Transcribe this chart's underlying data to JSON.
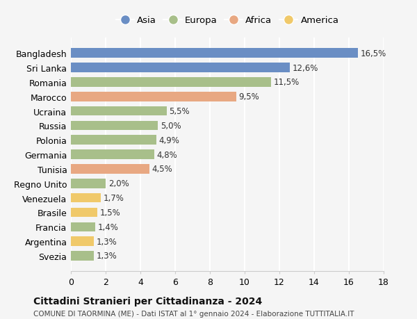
{
  "categories": [
    "Svezia",
    "Argentina",
    "Francia",
    "Brasile",
    "Venezuela",
    "Regno Unito",
    "Tunisia",
    "Germania",
    "Polonia",
    "Russia",
    "Ucraina",
    "Marocco",
    "Romania",
    "Sri Lanka",
    "Bangladesh"
  ],
  "values": [
    1.3,
    1.3,
    1.4,
    1.5,
    1.7,
    2.0,
    4.5,
    4.8,
    4.9,
    5.0,
    5.5,
    9.5,
    11.5,
    12.6,
    16.5
  ],
  "labels": [
    "1,3%",
    "1,3%",
    "1,4%",
    "1,5%",
    "1,7%",
    "2,0%",
    "4,5%",
    "4,8%",
    "4,9%",
    "5,0%",
    "5,5%",
    "9,5%",
    "11,5%",
    "12,6%",
    "16,5%"
  ],
  "continents": [
    "Europa",
    "America",
    "Europa",
    "America",
    "America",
    "Europa",
    "Africa",
    "Europa",
    "Europa",
    "Europa",
    "Europa",
    "Africa",
    "Europa",
    "Asia",
    "Asia"
  ],
  "colors": {
    "Asia": "#6a8ec4",
    "Europa": "#a8bf8a",
    "Africa": "#e8a882",
    "America": "#f0c96a"
  },
  "legend_order": [
    "Asia",
    "Europa",
    "Africa",
    "America"
  ],
  "title": "Cittadini Stranieri per Cittadinanza - 2024",
  "subtitle": "COMUNE DI TAORMINA (ME) - Dati ISTAT al 1° gennaio 2024 - Elaborazione TUTTITALIA.IT",
  "xlim": [
    0,
    18
  ],
  "xticks": [
    0,
    2,
    4,
    6,
    8,
    10,
    12,
    14,
    16,
    18
  ],
  "bg_color": "#f5f5f5",
  "grid_color": "#ffffff",
  "bar_height": 0.65
}
